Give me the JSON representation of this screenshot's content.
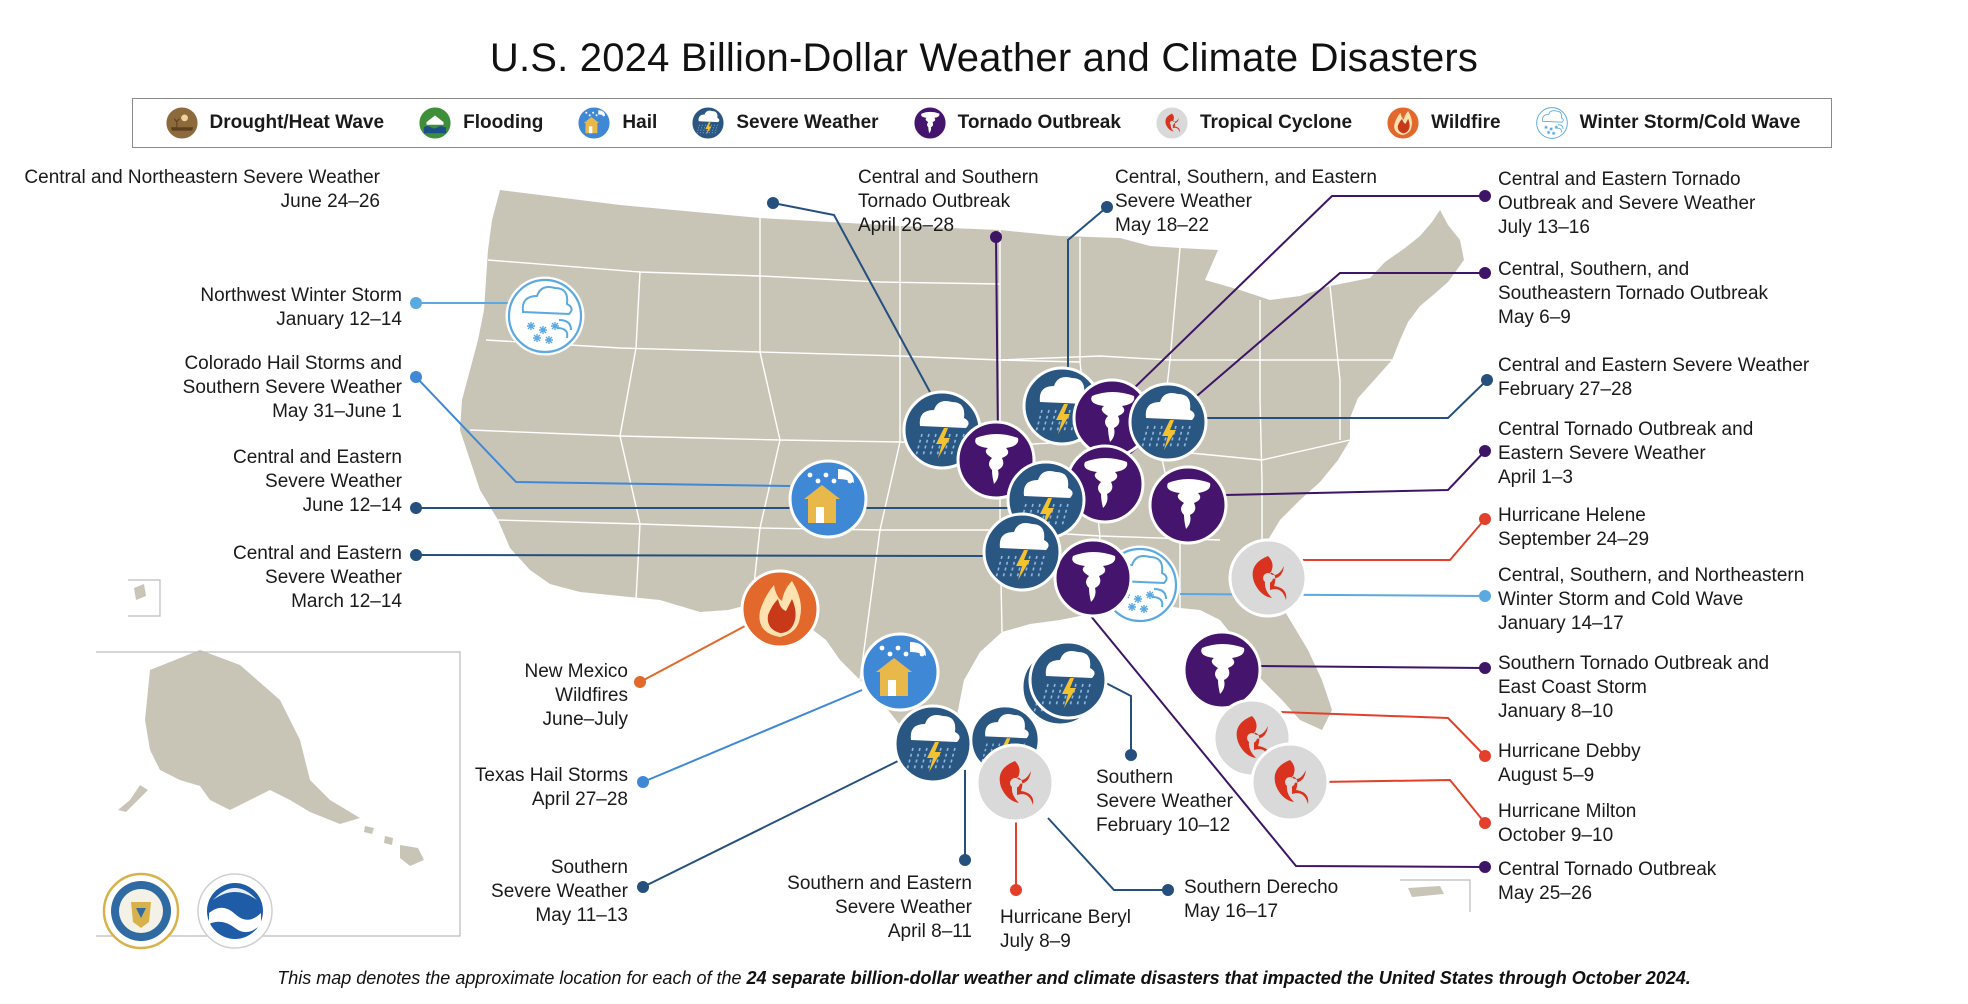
{
  "title": "U.S. 2024 Billion-Dollar Weather and Climate Disasters",
  "legend": [
    {
      "type": "drought",
      "label": "Drought/Heat Wave",
      "color": "#8c6a3c"
    },
    {
      "type": "flood",
      "label": "Flooding",
      "color": "#3e8e3a"
    },
    {
      "type": "hail",
      "label": "Hail",
      "color": "#3f88d6"
    },
    {
      "type": "severe",
      "label": "Severe Weather",
      "color": "#2a5682"
    },
    {
      "type": "tornado",
      "label": "Tornado Outbreak",
      "color": "#45156d"
    },
    {
      "type": "tropical",
      "label": "Tropical Cyclone",
      "color": "#e04a2f"
    },
    {
      "type": "wildfire",
      "label": "Wildfire",
      "color": "#e2692b"
    },
    {
      "type": "winter",
      "label": "Winter Storm/Cold Wave",
      "color": "#5aa9e0"
    }
  ],
  "events": [
    {
      "label": "Central and Northeastern Severe Weather\nJune 24–26",
      "type": "severe"
    },
    {
      "label": "Central and Southern\nTornado Outbreak\nApril 26–28",
      "type": "tornado"
    },
    {
      "label": "Central, Southern, and Eastern\nSevere Weather\nMay 18–22",
      "type": "severe"
    },
    {
      "label": "Central and Eastern Tornado\nOutbreak and Severe Weather\nJuly 13–16",
      "type": "tornado"
    },
    {
      "label": "Central, Southern, and\nSoutheastern Tornado Outbreak\nMay 6–9",
      "type": "tornado"
    },
    {
      "label": "Central and Eastern Severe Weather\nFebruary 27–28",
      "type": "severe"
    },
    {
      "label": "Central Tornado Outbreak and\nEastern Severe Weather\nApril 1–3",
      "type": "tornado"
    },
    {
      "label": "Hurricane Helene\nSeptember 24–29",
      "type": "tropical"
    },
    {
      "label": "Central, Southern, and Northeastern\nWinter Storm and Cold Wave\nJanuary 14–17",
      "type": "winter"
    },
    {
      "label": "Southern Tornado Outbreak and\nEast Coast Storm\nJanuary 8–10",
      "type": "tornado"
    },
    {
      "label": "Hurricane Debby\nAugust 5–9",
      "type": "tropical"
    },
    {
      "label": "Hurricane Milton\nOctober 9–10",
      "type": "tropical"
    },
    {
      "label": "Central Tornado Outbreak\nMay 25–26",
      "type": "tornado"
    },
    {
      "label": "Northwest Winter Storm\nJanuary 12–14",
      "type": "winter"
    },
    {
      "label": "Colorado Hail Storms and\nSouthern Severe Weather\nMay 31–June 1",
      "type": "hail"
    },
    {
      "label": "Central and Eastern\nSevere Weather\nJune 12–14",
      "type": "severe"
    },
    {
      "label": "Central and Eastern\nSevere Weather\nMarch 12–14",
      "type": "severe"
    },
    {
      "label": "New Mexico\nWildfires\nJune–July",
      "type": "wildfire"
    },
    {
      "label": "Texas Hail Storms\nApril 27–28",
      "type": "hail"
    },
    {
      "label": "Southern\nSevere Weather\nMay 11–13",
      "type": "severe"
    },
    {
      "label": "Southern and Eastern\nSevere Weather\nApril 8–11",
      "type": "severe"
    },
    {
      "label": "Hurricane Beryl\nJuly 8–9",
      "type": "tropical"
    },
    {
      "label": "Southern Derecho\nMay 16–17",
      "type": "severe"
    },
    {
      "label": "Southern\nSevere Weather\nFebruary 10–12",
      "type": "severe"
    }
  ],
  "footnote": {
    "pre": "This map denotes the approximate location for each of the ",
    "bold": "24 separate billion-dollar weather and climate disasters that impacted the United States through October 2024."
  },
  "colors": {
    "land": "#c8c5b7",
    "border": "#ffffff"
  }
}
